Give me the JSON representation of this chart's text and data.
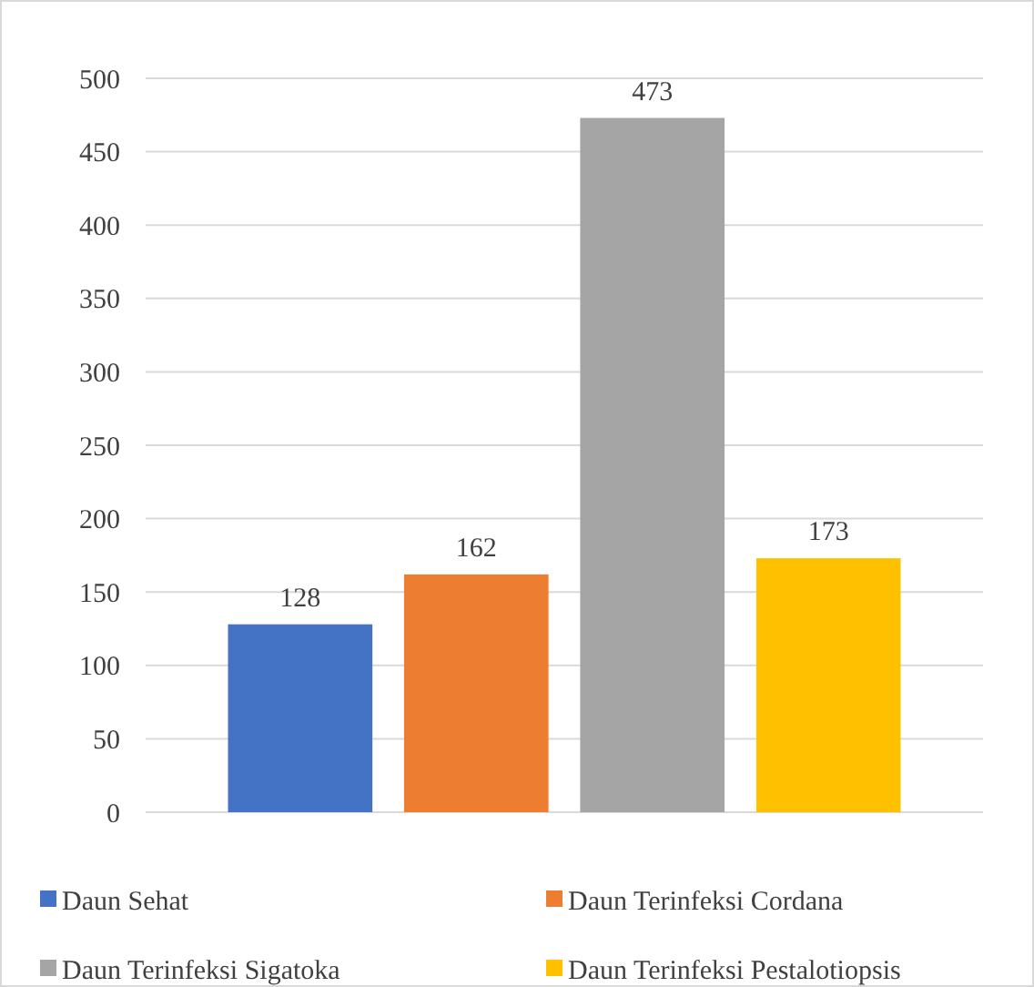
{
  "chart_data": {
    "type": "bar",
    "categories": [
      null
    ],
    "series": [
      {
        "name": "Daun Sehat",
        "color": "#4472c4",
        "values": [
          128
        ]
      },
      {
        "name": "Daun Terinfeksi Cordana",
        "color": "#ed7d31",
        "values": [
          162
        ]
      },
      {
        "name": "Daun Terinfeksi Sigatoka",
        "color": "#a5a5a5",
        "values": [
          473
        ]
      },
      {
        "name": "Daun Terinfeksi Pestalotiopsis",
        "color": "#ffc000",
        "values": [
          173
        ]
      }
    ],
    "ylim": [
      0,
      500
    ],
    "yticks": [
      0,
      50,
      100,
      150,
      200,
      250,
      300,
      350,
      400,
      450,
      500
    ],
    "grid": "y",
    "data_labels": true,
    "legend": "bottom"
  }
}
